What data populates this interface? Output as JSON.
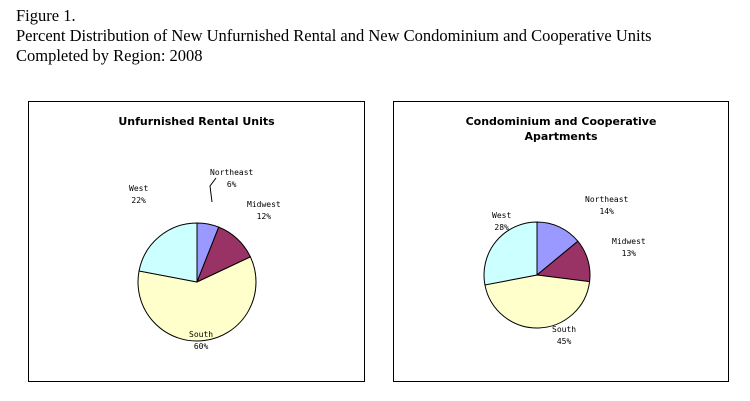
{
  "figure": {
    "label": "Figure 1.",
    "title_line1": "Percent Distribution of New Unfurnished Rental and New Condominium and Cooperative Units",
    "title_line2": "Completed by Region: 2008"
  },
  "chart_data": [
    {
      "type": "pie",
      "title": "Unfurnished Rental Units",
      "categories": [
        "Northeast",
        "Midwest",
        "South",
        "West"
      ],
      "values": [
        6,
        12,
        60,
        22
      ],
      "value_labels": [
        "6%",
        "12%",
        "60%",
        "22%"
      ],
      "colors": [
        "#9999ff",
        "#993366",
        "#ffffcc",
        "#ccffff"
      ]
    },
    {
      "type": "pie",
      "title": "Condominium and Cooperative Apartments",
      "categories": [
        "Northeast",
        "Midwest",
        "South",
        "West"
      ],
      "values": [
        14,
        13,
        45,
        28
      ],
      "value_labels": [
        "14%",
        "13%",
        "45%",
        "28%"
      ],
      "colors": [
        "#9999ff",
        "#993366",
        "#ffffcc",
        "#ccffff"
      ]
    }
  ]
}
